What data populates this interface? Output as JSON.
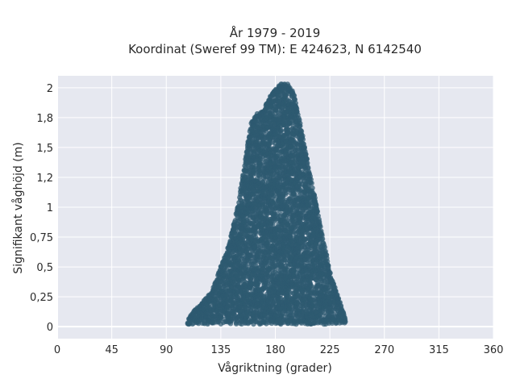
{
  "chart_data": {
    "type": "scatter",
    "title_lines": [
      "År 1979 - 2019",
      "Koordinat (Sweref 99 TM): E 424623, N 6142540"
    ],
    "xlabel": "Vågriktning (grader)",
    "ylabel": "Signifikant våghöjd (m)",
    "xlim": [
      0,
      360
    ],
    "ylim": [
      -0.1,
      2.1
    ],
    "x_ticks": [
      0,
      45,
      90,
      135,
      180,
      225,
      270,
      315,
      360
    ],
    "x_tick_labels": [
      "0",
      "45",
      "90",
      "135",
      "180",
      "225",
      "270",
      "315",
      "360"
    ],
    "y_ticks": [
      0,
      0.25,
      0.5,
      0.75,
      1,
      1.25,
      1.5,
      1.75,
      2
    ],
    "y_tick_labels": [
      "0",
      "0,25",
      "0,5",
      "0,75",
      "1",
      "1,2",
      "1,5",
      "1,8",
      "2"
    ],
    "grid": true,
    "legend": "none",
    "colors": {
      "marker": "#2e5a70",
      "plot_bg": "#e6e8f0",
      "grid": "#ffffff"
    },
    "envelope_upper": [
      [
        108,
        0.05
      ],
      [
        112,
        0.12
      ],
      [
        120,
        0.2
      ],
      [
        128,
        0.3
      ],
      [
        135,
        0.5
      ],
      [
        140,
        0.62
      ],
      [
        145,
        0.82
      ],
      [
        150,
        1.05
      ],
      [
        155,
        1.38
      ],
      [
        160,
        1.7
      ],
      [
        165,
        1.78
      ],
      [
        170,
        1.8
      ],
      [
        175,
        1.92
      ],
      [
        180,
        1.98
      ],
      [
        185,
        2.03
      ],
      [
        190,
        2.03
      ],
      [
        195,
        1.96
      ],
      [
        200,
        1.72
      ],
      [
        205,
        1.45
      ],
      [
        210,
        1.2
      ],
      [
        215,
        0.95
      ],
      [
        220,
        0.7
      ],
      [
        225,
        0.45
      ],
      [
        230,
        0.3
      ],
      [
        235,
        0.15
      ],
      [
        238,
        0.05
      ]
    ]
  }
}
